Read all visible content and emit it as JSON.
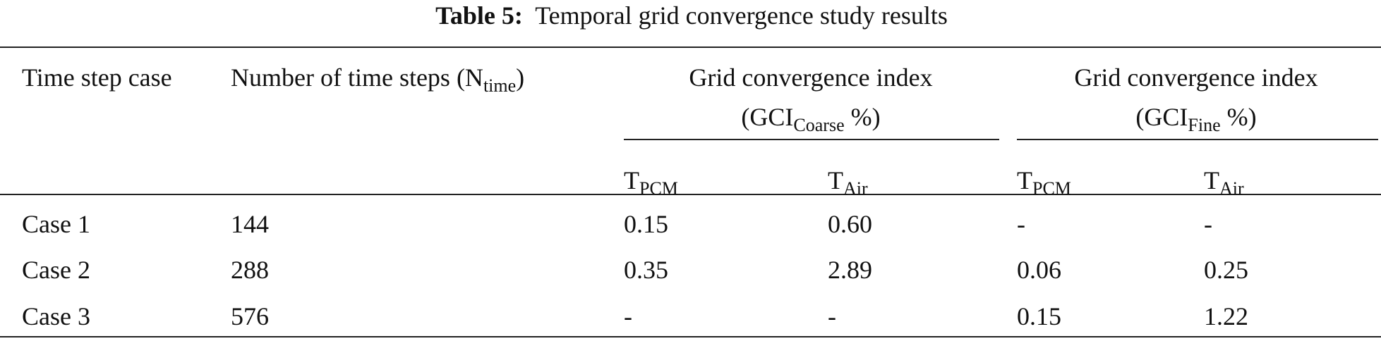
{
  "caption": {
    "label": "Table 5:",
    "text": "Temporal grid convergence study results"
  },
  "table": {
    "headers": {
      "case": "Time step case",
      "steps": {
        "text": "Number of time steps (N",
        "sub": "time",
        "tail": ")"
      },
      "groups": [
        {
          "title": "Grid convergence index",
          "unit": {
            "text": "(GCI",
            "sub": "Coarse",
            "tail": " %)"
          }
        },
        {
          "title": "Grid convergence index",
          "unit": {
            "text": "(GCI",
            "sub": "Fine",
            "tail": " %)"
          }
        }
      ],
      "sub_columns": [
        {
          "text": "T",
          "sub": "PCM"
        },
        {
          "text": "T",
          "sub": "Air"
        },
        {
          "text": "T",
          "sub": "PCM"
        },
        {
          "text": "T",
          "sub": "Air"
        }
      ]
    },
    "rows": [
      [
        "Case 1",
        "144",
        "0.15",
        "0.60",
        "-",
        "-"
      ],
      [
        "Case 2",
        "288",
        "0.35",
        "2.89",
        "0.06",
        "0.25"
      ],
      [
        "Case 3",
        "576",
        "-",
        "-",
        "0.15",
        "1.22"
      ]
    ]
  }
}
